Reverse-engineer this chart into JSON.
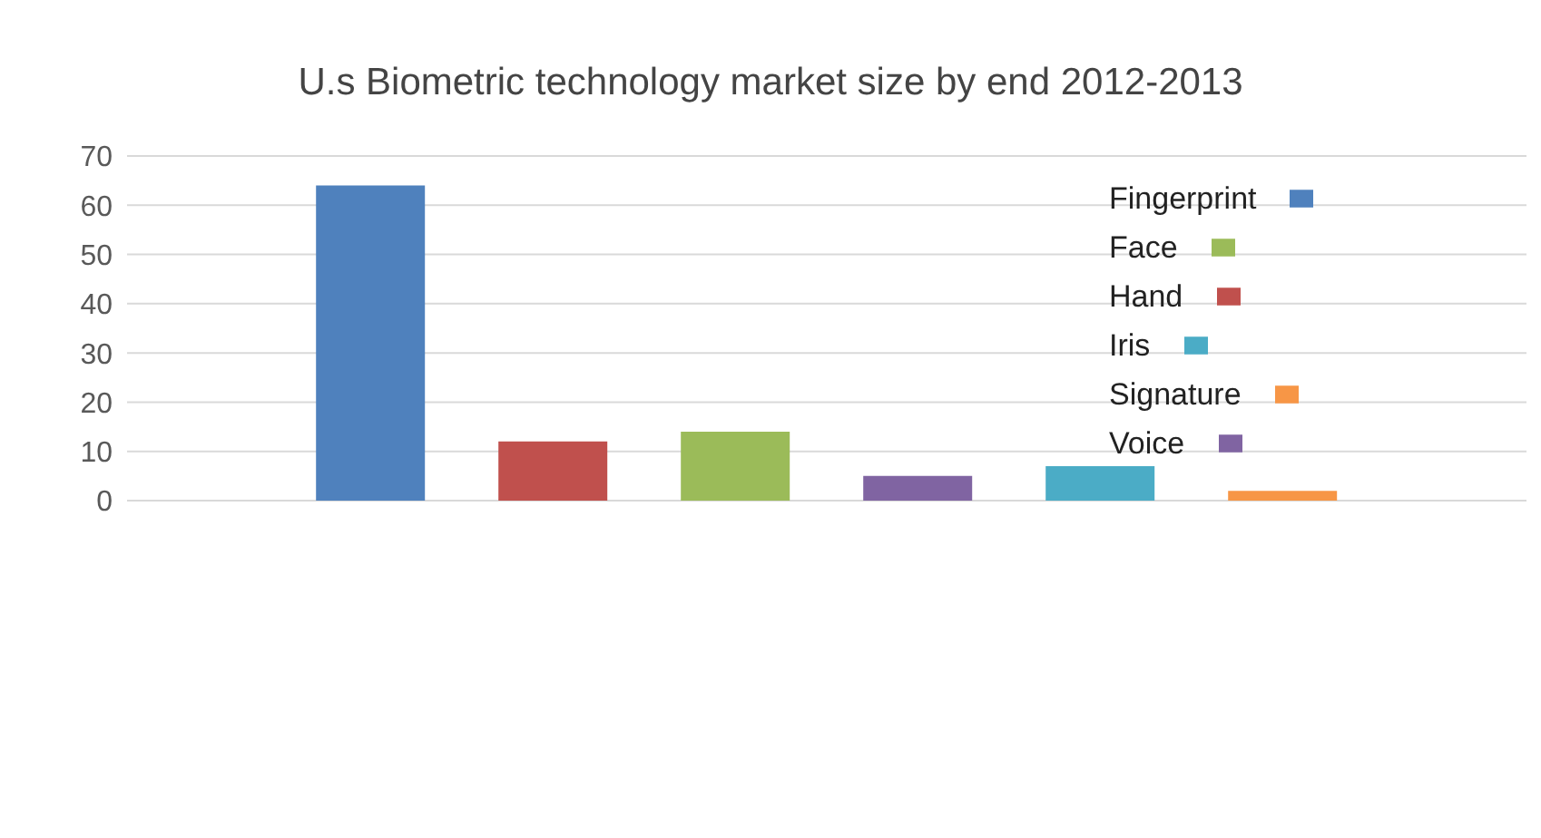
{
  "chart_data": {
    "type": "bar",
    "title": "U.s Biometric technology market size by end 2012-2013",
    "categories": [
      null,
      null,
      null,
      null,
      null,
      null
    ],
    "stacked": true,
    "series": [
      {
        "name": "Fingerprint",
        "color": "#4f81bd",
        "values": [
          64,
          null,
          null,
          null,
          null,
          null
        ]
      },
      {
        "name": "Face",
        "color": "#9bbb59",
        "values": [
          null,
          null,
          14,
          null,
          null,
          null
        ]
      },
      {
        "name": "Hand",
        "color": "#c0504d",
        "values": [
          null,
          12,
          null,
          null,
          null,
          null
        ]
      },
      {
        "name": "Iris",
        "color": "#4bacc6",
        "values": [
          null,
          null,
          null,
          null,
          7,
          null
        ]
      },
      {
        "name": "Signature",
        "color": "#f79646",
        "values": [
          null,
          null,
          null,
          null,
          null,
          2
        ]
      },
      {
        "name": "Voice",
        "color": "#8064a2",
        "values": [
          null,
          null,
          null,
          5,
          null,
          null
        ]
      }
    ],
    "ylim": [
      0,
      70
    ],
    "yticks": [
      0,
      10,
      20,
      30,
      40,
      50,
      60,
      70
    ],
    "grid": "y",
    "legend": "top right"
  }
}
